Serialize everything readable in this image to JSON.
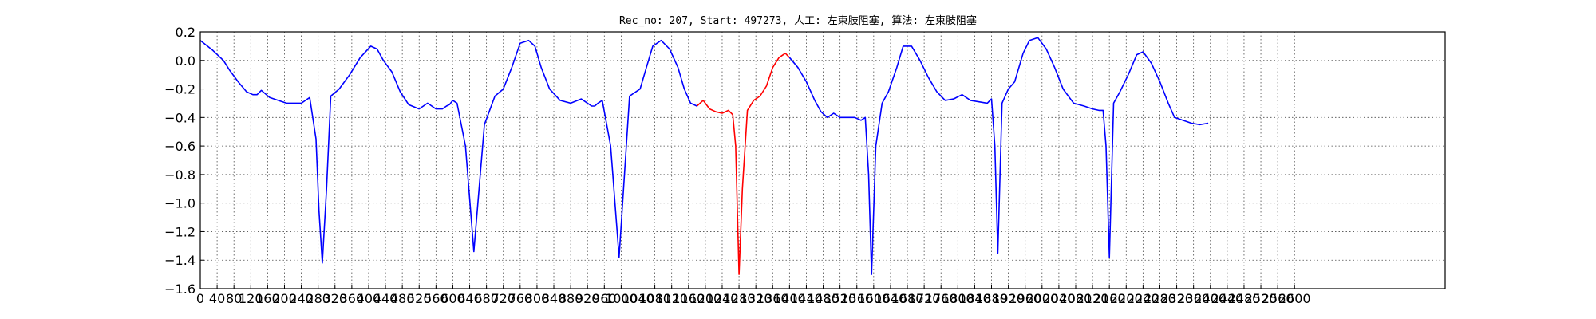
{
  "chart_data": {
    "type": "line",
    "title": "Rec_no: 207, Start: 497273, 人工: 左束肢阻塞, 算法: 左束肢阻塞",
    "xlabel": "",
    "ylabel": "",
    "xlim": [
      0,
      2600
    ],
    "ylim": [
      -1.6,
      0.2
    ],
    "grid": true,
    "yticks": [
      0.2,
      0.0,
      -0.2,
      -0.4,
      -0.6,
      -0.8,
      -1.0,
      -1.2,
      -1.4,
      -1.6
    ],
    "ytick_labels": [
      "0.2",
      "0.0",
      "−0.2",
      "−0.4",
      "−0.6",
      "−0.8",
      "−1.0",
      "−1.2",
      "−1.4",
      "−1.6"
    ],
    "xticks": [
      0,
      40,
      80,
      120,
      160,
      200,
      240,
      280,
      320,
      360,
      400,
      440,
      480,
      520,
      560,
      600,
      640,
      680,
      720,
      760,
      800,
      840,
      880,
      920,
      960,
      1000,
      1040,
      1080,
      1120,
      1160,
      1200,
      1240,
      1280,
      1320,
      1360,
      1400,
      1440,
      1480,
      1520,
      1560,
      1600,
      1640,
      1680,
      1720,
      1760,
      1800,
      1840,
      1880,
      1920,
      1960,
      2000,
      2040,
      2080,
      2120,
      2160,
      2200,
      2240,
      2280,
      2320,
      2360,
      2400,
      2440,
      2480,
      2520,
      2560,
      2600
    ],
    "series": [
      {
        "color": "#0000ff",
        "x": [
          0,
          30,
          55,
          70,
          90,
          110,
          125,
          135,
          145,
          165,
          185,
          205,
          225,
          240,
          260,
          275,
          282,
          290,
          300,
          310,
          330,
          355,
          380,
          405,
          420,
          435,
          455,
          475,
          495,
          520,
          540,
          560,
          575,
          585,
          592,
          600,
          610,
          630,
          650,
          675,
          700,
          720,
          740,
          760,
          780,
          795,
          810,
          830,
          855,
          880,
          905,
          920,
          930,
          937,
          945,
          955,
          975,
          995,
          1020,
          1045,
          1060,
          1075,
          1095,
          1115,
          1135,
          1150,
          1165,
          1180
        ],
        "y": [
          0.14,
          0.07,
          0.0,
          -0.07,
          -0.15,
          -0.22,
          -0.24,
          -0.24,
          -0.21,
          -0.26,
          -0.28,
          -0.3,
          -0.3,
          -0.3,
          -0.26,
          -0.55,
          -1.05,
          -1.42,
          -0.9,
          -0.25,
          -0.2,
          -0.1,
          0.02,
          0.1,
          0.08,
          0.0,
          -0.08,
          -0.22,
          -0.31,
          -0.34,
          -0.3,
          -0.34,
          -0.34,
          -0.32,
          -0.31,
          -0.28,
          -0.3,
          -0.6,
          -1.34,
          -0.45,
          -0.25,
          -0.2,
          -0.05,
          0.12,
          0.14,
          0.1,
          -0.05,
          -0.2,
          -0.28,
          -0.3,
          -0.27,
          -0.3,
          -0.32,
          -0.32,
          -0.3,
          -0.28,
          -0.6,
          -1.38,
          -0.25,
          -0.2,
          -0.05,
          0.1,
          0.14,
          0.08,
          -0.05,
          -0.2,
          -0.3,
          -0.32
        ]
      },
      {
        "color": "#ff0000",
        "x": [
          1180,
          1195,
          1210,
          1225,
          1240,
          1255,
          1265,
          1272,
          1280,
          1288,
          1300,
          1315,
          1330,
          1345,
          1360,
          1375,
          1390,
          1400
        ],
        "y": [
          -0.32,
          -0.28,
          -0.34,
          -0.36,
          -0.37,
          -0.35,
          -0.38,
          -0.6,
          -1.5,
          -0.9,
          -0.35,
          -0.28,
          -0.25,
          -0.18,
          -0.05,
          0.02,
          0.05,
          0.02
        ]
      },
      {
        "color": "#0000ff",
        "x": [
          1400,
          1420,
          1440,
          1460,
          1475,
          1490,
          1505,
          1520,
          1540,
          1555,
          1570,
          1580,
          1588,
          1595,
          1605,
          1620,
          1635,
          1655,
          1670,
          1690,
          1710,
          1730,
          1750,
          1770,
          1790,
          1810,
          1830,
          1850,
          1870,
          1880,
          1888,
          1895,
          1905,
          1920,
          1935,
          1955,
          1970,
          1990,
          2010,
          2030,
          2050,
          2075,
          2100,
          2120,
          2135,
          2145,
          2152,
          2160,
          2170,
          2185,
          2205,
          2225,
          2240,
          2260,
          2280,
          2300,
          2315,
          2335,
          2355,
          2375,
          2395
        ],
        "y": [
          0.02,
          -0.05,
          -0.15,
          -0.28,
          -0.36,
          -0.4,
          -0.37,
          -0.4,
          -0.4,
          -0.4,
          -0.42,
          -0.4,
          -0.8,
          -1.5,
          -0.6,
          -0.3,
          -0.22,
          -0.05,
          0.1,
          0.1,
          0.0,
          -0.12,
          -0.22,
          -0.28,
          -0.27,
          -0.24,
          -0.28,
          -0.29,
          -0.3,
          -0.27,
          -0.6,
          -1.35,
          -0.3,
          -0.2,
          -0.15,
          0.05,
          0.14,
          0.16,
          0.08,
          -0.05,
          -0.2,
          -0.3,
          -0.32,
          -0.34,
          -0.35,
          -0.35,
          -0.6,
          -1.38,
          -0.3,
          -0.22,
          -0.1,
          0.04,
          0.06,
          -0.02,
          -0.15,
          -0.3,
          -0.4,
          -0.42,
          -0.44,
          -0.45,
          -0.44
        ]
      }
    ]
  }
}
